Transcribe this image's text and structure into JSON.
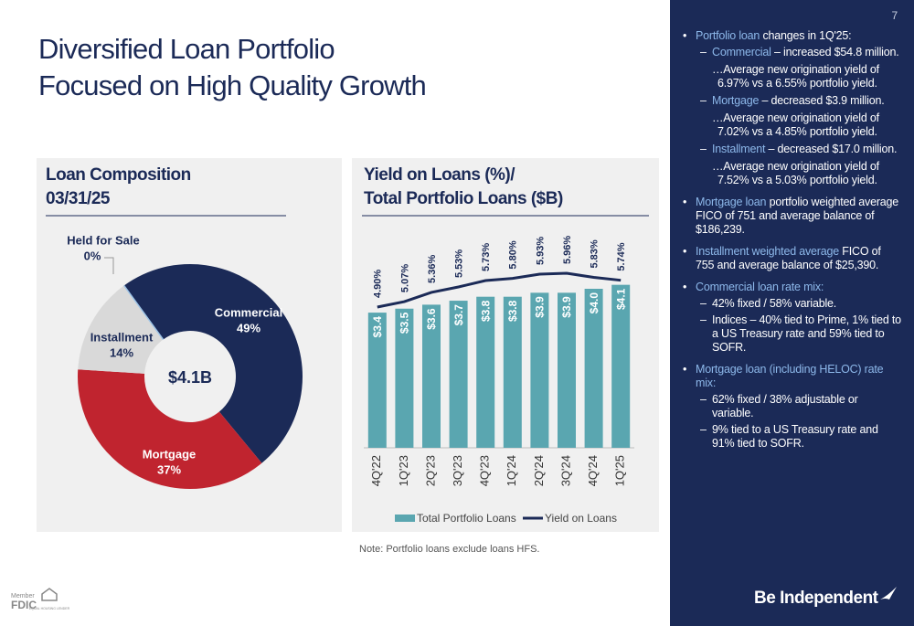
{
  "header": {
    "title_lines": [
      "Diversified Loan Portfolio",
      "Focused on High Quality Growth"
    ],
    "page_number": "7"
  },
  "chart_data": [
    {
      "type": "pie",
      "title_lines": [
        "Loan Composition",
        "03/31/25"
      ],
      "center_label": "$4.1B",
      "categories": [
        "Commercial",
        "Mortgage",
        "Installment",
        "Held for Sale"
      ],
      "values": [
        49,
        37,
        14,
        0
      ],
      "value_labels": [
        "49%",
        "37%",
        "14%",
        "0%"
      ],
      "colors": [
        "#1b2a57",
        "#c0242f",
        "#d9d9d9",
        "#9dc3e6"
      ]
    },
    {
      "type": "bar_line",
      "title_lines": [
        "Yield on Loans (%)/",
        "Total Portfolio Loans ($B)"
      ],
      "categories": [
        "4Q'22",
        "1Q'23",
        "2Q'23",
        "3Q'23",
        "4Q'23",
        "1Q'24",
        "2Q'24",
        "3Q'24",
        "4Q'24",
        "1Q'25"
      ],
      "series": [
        {
          "name": "Total Portfolio Loans",
          "type": "bar",
          "color": "#5aa6b0",
          "values": [
            3.4,
            3.5,
            3.6,
            3.7,
            3.8,
            3.8,
            3.9,
            3.9,
            4.0,
            4.1
          ],
          "value_labels": [
            "$3.4",
            "$3.5",
            "$3.6",
            "$3.7",
            "$3.8",
            "$3.8",
            "$3.9",
            "$3.9",
            "$4.0",
            "$4.1"
          ]
        },
        {
          "name": "Yield on Loans",
          "type": "line",
          "color": "#1b2a57",
          "values": [
            4.9,
            5.07,
            5.36,
            5.53,
            5.73,
            5.8,
            5.93,
            5.96,
            5.83,
            5.74
          ],
          "value_labels": [
            "4.90%",
            "5.07%",
            "5.36%",
            "5.53%",
            "5.73%",
            "5.80%",
            "5.93%",
            "5.96%",
            "5.83%",
            "5.74%"
          ]
        }
      ],
      "note": "Note: Portfolio loans exclude loans HFS."
    }
  ],
  "sidebar": {
    "bullets": [
      {
        "highlight": "Portfolio loan",
        "text": "changes in 1Q'25:",
        "subs": [
          {
            "highlight": "Commercial",
            "text": "– increased $54.8 million.",
            "note": "…Average new origination yield of 6.97% vs a 6.55% portfolio yield."
          },
          {
            "highlight": "Mortgage",
            "text": "– decreased $3.9 million.",
            "note": "…Average new origination yield of 7.02% vs a 4.85% portfolio yield."
          },
          {
            "highlight": "Installment",
            "text": "– decreased $17.0 million.",
            "note": "…Average new origination yield of 7.52% vs a 5.03% portfolio yield."
          }
        ]
      },
      {
        "highlight": "Mortgage loan",
        "text": "portfolio weighted average FICO of 751 and average balance of $186,239."
      },
      {
        "highlight": "Installment weighted average",
        "text": "FICO of 755 and average balance of $25,390."
      },
      {
        "highlight": "Commercial loan rate mix:",
        "subs": [
          {
            "text": "42% fixed / 58% variable."
          },
          {
            "text": "Indices – 40% tied to Prime, 1% tied to a US Treasury rate and 59% tied to SOFR."
          }
        ]
      },
      {
        "highlight": "Mortgage loan (including HELOC) rate mix:",
        "subs": [
          {
            "text": "62% fixed / 38% adjustable or variable."
          },
          {
            "text": "9% tied to a US Treasury rate and 91% tied to SOFR."
          }
        ]
      }
    ],
    "logo": "Be Independent"
  },
  "footer": {
    "member": "Member",
    "fdic": "FDIC",
    "housing": "EQUAL HOUSING LENDER"
  }
}
